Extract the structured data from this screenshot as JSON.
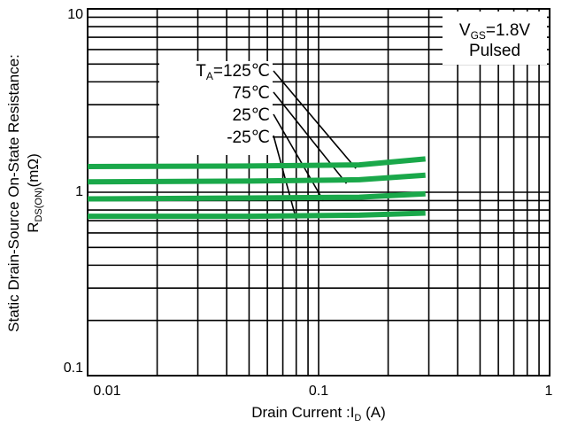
{
  "chart_data": {
    "type": "line",
    "title": "",
    "x_scale": "log",
    "y_scale": "log",
    "xlim": [
      0.01,
      1
    ],
    "ylim": [
      0.1,
      10
    ],
    "grid": true,
    "x_ticks": [
      "0.01",
      "0.1",
      "1"
    ],
    "y_ticks": [
      "0.1",
      "1",
      "10"
    ],
    "xlabel": {
      "main": "Drain Current :I",
      "sub": "D",
      "unit": " (A)"
    },
    "ylabel": {
      "line1": "Static Drain-Source On-State Resistance:",
      "main": "R",
      "sub": "DS(ON)",
      "unit": "(mΩ)"
    },
    "condition": {
      "main": "V",
      "sub": "GS",
      "value": "=1.8V",
      "line2": "Pulsed"
    },
    "series_labels": [
      {
        "prefix": "T",
        "sub": "A",
        "text": "=125℃"
      },
      {
        "prefix": "",
        "sub": "",
        "text": "75℃"
      },
      {
        "prefix": "",
        "sub": "",
        "text": "25℃"
      },
      {
        "prefix": "",
        "sub": "",
        "text": "-25℃"
      }
    ],
    "line_color": "#1aa84a",
    "series": [
      {
        "name": "125℃",
        "x": [
          0.01,
          0.05,
          0.15,
          0.29
        ],
        "y": [
          1.38,
          1.39,
          1.41,
          1.52
        ]
      },
      {
        "name": "75℃",
        "x": [
          0.01,
          0.05,
          0.15,
          0.29
        ],
        "y": [
          1.14,
          1.15,
          1.17,
          1.24
        ]
      },
      {
        "name": "25℃",
        "x": [
          0.01,
          0.05,
          0.15,
          0.29
        ],
        "y": [
          0.92,
          0.93,
          0.94,
          0.98
        ]
      },
      {
        "name": "-25℃",
        "x": [
          0.01,
          0.05,
          0.15,
          0.29
        ],
        "y": [
          0.74,
          0.74,
          0.75,
          0.77
        ]
      }
    ]
  }
}
